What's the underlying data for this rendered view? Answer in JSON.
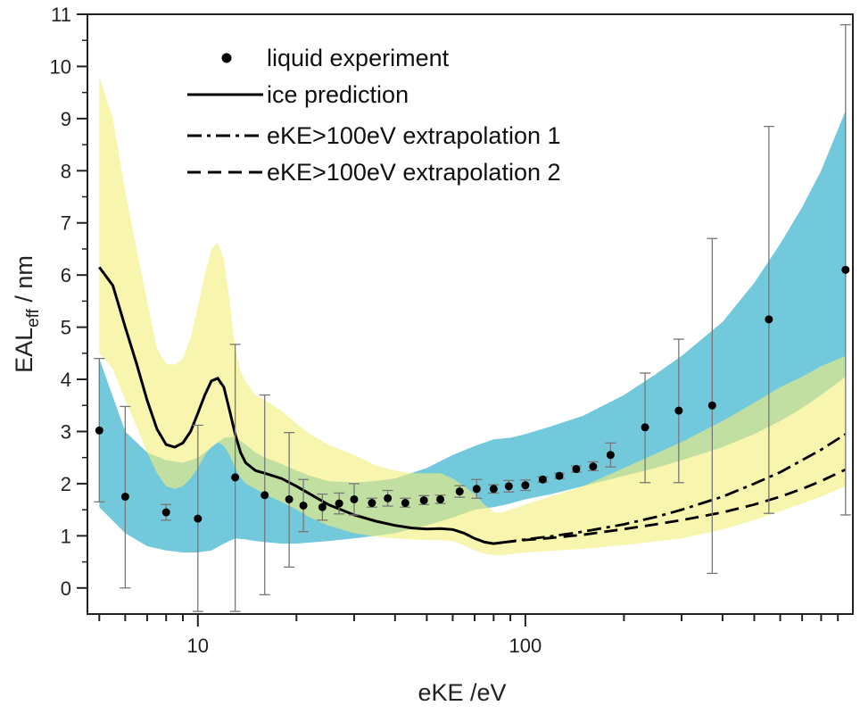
{
  "chart_data": {
    "type": "scatter",
    "title": "",
    "xlabel": "eKE /eV",
    "ylabel_main": "EAL",
    "ylabel_sub": "eff",
    "ylabel_tail": " / nm",
    "xscale": "log",
    "xlim": [
      4.6,
      1000
    ],
    "ylim": [
      -0.5,
      11
    ],
    "x_tick_labels": [
      {
        "x": 10,
        "label": "10"
      },
      {
        "x": 100,
        "label": "100"
      }
    ],
    "y_ticks": [
      0,
      1,
      2,
      3,
      4,
      5,
      6,
      7,
      8,
      9,
      10,
      11
    ],
    "grid": false,
    "legend_position": "top-left",
    "colors": {
      "ice_band": "#f3ef7a",
      "liquid_band": "#5bc0d6",
      "overlap": "#9ccc78",
      "line": "#000000",
      "error_bar": "#777777"
    },
    "legend": [
      {
        "label": "liquid experiment",
        "style": "dot"
      },
      {
        "label": "ice prediction",
        "style": "solid"
      },
      {
        "label": "eKE>100eV extrapolation 1",
        "style": "dashdot"
      },
      {
        "label": "eKE>100eV extrapolation 2",
        "style": "dashed"
      }
    ],
    "liquid_experiment": [
      {
        "x": 5.0,
        "y": 3.02,
        "err_low": 1.65,
        "err_high": 4.4
      },
      {
        "x": 6.0,
        "y": 1.75,
        "err_low": 0.0,
        "err_high": 3.48
      },
      {
        "x": 8.0,
        "y": 1.45,
        "err_low": 1.3,
        "err_high": 1.6
      },
      {
        "x": 10.0,
        "y": 1.33,
        "err_low": -0.45,
        "err_high": 3.12
      },
      {
        "x": 13.0,
        "y": 2.12,
        "err_low": -0.45,
        "err_high": 4.67
      },
      {
        "x": 16.0,
        "y": 1.78,
        "err_low": -0.13,
        "err_high": 3.7
      },
      {
        "x": 19.0,
        "y": 1.7,
        "err_low": 0.4,
        "err_high": 2.98
      },
      {
        "x": 21.0,
        "y": 1.58,
        "err_low": 1.08,
        "err_high": 2.08
      },
      {
        "x": 24.0,
        "y": 1.55,
        "err_low": 1.3,
        "err_high": 1.8
      },
      {
        "x": 27.0,
        "y": 1.62,
        "err_low": 1.42,
        "err_high": 1.82
      },
      {
        "x": 30.0,
        "y": 1.7,
        "err_low": 1.4,
        "err_high": 2.0
      },
      {
        "x": 34.0,
        "y": 1.63,
        "err_low": 1.55,
        "err_high": 1.72
      },
      {
        "x": 38.0,
        "y": 1.72,
        "err_low": 1.57,
        "err_high": 1.87
      },
      {
        "x": 43.0,
        "y": 1.63,
        "err_low": 1.55,
        "err_high": 1.72
      },
      {
        "x": 49.0,
        "y": 1.68,
        "err_low": 1.6,
        "err_high": 1.77
      },
      {
        "x": 55.0,
        "y": 1.7,
        "err_low": 1.62,
        "err_high": 1.78
      },
      {
        "x": 63.0,
        "y": 1.85,
        "err_low": 1.74,
        "err_high": 1.96
      },
      {
        "x": 71.0,
        "y": 1.9,
        "err_low": 1.72,
        "err_high": 2.08
      },
      {
        "x": 80.0,
        "y": 1.9,
        "err_low": 1.82,
        "err_high": 1.98
      },
      {
        "x": 89.0,
        "y": 1.95,
        "err_low": 1.84,
        "err_high": 2.06
      },
      {
        "x": 100.0,
        "y": 1.97,
        "err_low": 1.87,
        "err_high": 2.07
      },
      {
        "x": 113.0,
        "y": 2.08,
        "err_low": 2.03,
        "err_high": 2.13
      },
      {
        "x": 127.0,
        "y": 2.15,
        "err_low": 2.1,
        "err_high": 2.2
      },
      {
        "x": 143.0,
        "y": 2.28,
        "err_low": 2.22,
        "err_high": 2.34
      },
      {
        "x": 161.0,
        "y": 2.33,
        "err_low": 2.25,
        "err_high": 2.42
      },
      {
        "x": 182.0,
        "y": 2.55,
        "err_low": 2.32,
        "err_high": 2.78
      },
      {
        "x": 232.0,
        "y": 3.08,
        "err_low": 2.02,
        "err_high": 4.12
      },
      {
        "x": 294.0,
        "y": 3.4,
        "err_low": 2.02,
        "err_high": 4.77
      },
      {
        "x": 372.0,
        "y": 3.5,
        "err_low": 0.28,
        "err_high": 6.7
      },
      {
        "x": 554.0,
        "y": 5.15,
        "err_low": 1.43,
        "err_high": 8.85
      },
      {
        "x": 950.0,
        "y": 6.1,
        "err_low": 1.4,
        "err_high": 10.8
      }
    ],
    "ice_prediction": {
      "x": [
        5,
        5.5,
        6,
        6.5,
        7,
        7.5,
        8,
        8.5,
        9,
        9.5,
        10,
        10.5,
        11,
        11.5,
        12,
        12.5,
        13,
        13.5,
        14,
        15,
        16,
        18,
        20,
        22,
        25,
        30,
        35,
        40,
        45,
        50,
        55,
        60,
        65,
        70,
        75,
        80,
        85
      ],
      "y": [
        6.15,
        5.8,
        5.0,
        4.3,
        3.6,
        3.05,
        2.75,
        2.7,
        2.78,
        3.0,
        3.35,
        3.7,
        3.97,
        4.02,
        3.85,
        3.4,
        2.95,
        2.6,
        2.4,
        2.25,
        2.2,
        2.1,
        1.95,
        1.8,
        1.6,
        1.4,
        1.28,
        1.2,
        1.15,
        1.13,
        1.14,
        1.12,
        1.05,
        0.95,
        0.88,
        0.85,
        0.87
      ]
    },
    "extrapolation_1": {
      "x": [
        85,
        100,
        120,
        150,
        200,
        250,
        300,
        400,
        500,
        600,
        700,
        800,
        950
      ],
      "y": [
        0.87,
        0.93,
        0.99,
        1.08,
        1.22,
        1.36,
        1.5,
        1.75,
        2.0,
        2.22,
        2.45,
        2.65,
        2.95
      ]
    },
    "extrapolation_2": {
      "x": [
        85,
        100,
        120,
        150,
        200,
        250,
        300,
        400,
        500,
        600,
        700,
        800,
        950
      ],
      "y": [
        0.87,
        0.92,
        0.96,
        1.02,
        1.13,
        1.22,
        1.3,
        1.45,
        1.6,
        1.75,
        1.9,
        2.05,
        2.27
      ]
    },
    "ice_band": {
      "x": [
        5,
        5.5,
        6,
        6.5,
        7,
        7.5,
        8,
        8.5,
        9,
        9.5,
        10,
        10.5,
        11,
        11.5,
        12,
        12.5,
        13,
        13.5,
        14,
        15,
        16,
        18,
        20,
        22,
        25,
        30,
        35,
        40,
        45,
        50,
        55,
        60,
        65,
        70,
        75,
        80,
        85,
        100,
        150,
        200,
        300,
        400,
        500,
        600,
        700,
        800,
        950
      ],
      "upper": [
        9.8,
        9.0,
        7.6,
        6.5,
        5.5,
        4.6,
        4.3,
        4.28,
        4.4,
        4.8,
        5.4,
        6.0,
        6.5,
        6.62,
        6.3,
        5.5,
        4.6,
        4.15,
        3.95,
        3.7,
        3.6,
        3.4,
        3.15,
        2.95,
        2.75,
        2.55,
        2.35,
        2.25,
        2.2,
        2.2,
        2.2,
        2.1,
        1.95,
        1.8,
        1.6,
        1.45,
        1.45,
        1.6,
        1.95,
        2.3,
        2.8,
        3.2,
        3.55,
        3.85,
        4.05,
        4.25,
        4.45
      ],
      "lower": [
        4.5,
        4.2,
        3.6,
        3.1,
        2.6,
        2.2,
        1.95,
        1.9,
        1.95,
        2.1,
        2.3,
        2.55,
        2.7,
        2.8,
        2.72,
        2.55,
        2.3,
        2.12,
        2.0,
        1.9,
        1.8,
        1.65,
        1.5,
        1.35,
        1.2,
        1.05,
        0.98,
        0.95,
        0.93,
        0.92,
        0.92,
        0.9,
        0.82,
        0.72,
        0.66,
        0.63,
        0.63,
        0.68,
        0.75,
        0.82,
        0.95,
        1.12,
        1.3,
        1.47,
        1.62,
        1.75,
        1.95
      ]
    },
    "liquid_band": {
      "x": [
        5,
        6,
        7,
        8,
        9,
        10,
        11,
        12,
        13,
        14,
        15,
        16,
        18,
        20,
        22,
        25,
        30,
        35,
        40,
        50,
        60,
        70,
        80,
        90,
        100,
        120,
        150,
        200,
        250,
        300,
        400,
        500,
        600,
        700,
        800,
        950
      ],
      "upper": [
        4.4,
        3.0,
        2.6,
        2.45,
        2.4,
        2.5,
        2.7,
        2.88,
        2.9,
        2.75,
        2.6,
        2.5,
        2.38,
        2.25,
        2.15,
        2.05,
        2.02,
        2.05,
        2.1,
        2.3,
        2.55,
        2.72,
        2.85,
        2.88,
        2.95,
        3.1,
        3.3,
        3.7,
        4.1,
        4.45,
        5.1,
        5.85,
        6.6,
        7.3,
        8.0,
        9.15
      ],
      "lower": [
        1.55,
        1.05,
        0.8,
        0.72,
        0.68,
        0.68,
        0.72,
        0.85,
        0.95,
        0.93,
        0.9,
        0.88,
        0.85,
        0.85,
        0.87,
        0.9,
        0.95,
        1.0,
        1.05,
        1.2,
        1.35,
        1.5,
        1.55,
        1.62,
        1.7,
        1.8,
        1.95,
        2.15,
        2.3,
        2.45,
        2.7,
        2.95,
        3.2,
        3.45,
        3.7,
        4.05
      ]
    }
  }
}
